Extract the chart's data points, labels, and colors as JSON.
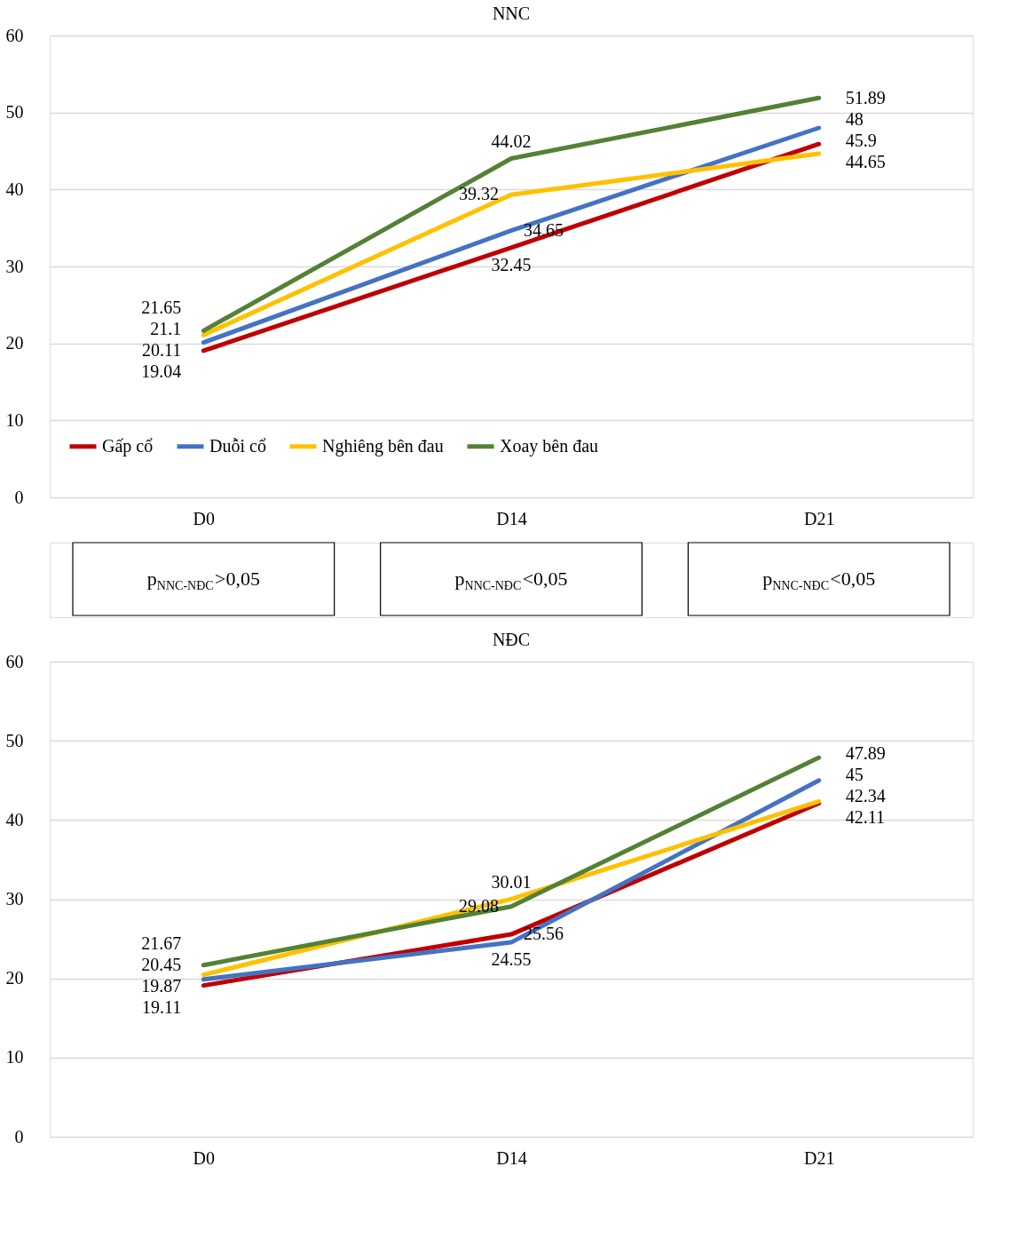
{
  "chart_data": [
    {
      "type": "line",
      "title": "NNC",
      "categories": [
        "D0",
        "D14",
        "D21"
      ],
      "ylim": [
        0,
        60
      ],
      "yticks": [
        0,
        10,
        20,
        30,
        40,
        50,
        60
      ],
      "grid": "y",
      "legend": "bottom",
      "data_labels": true,
      "line_style": "solid",
      "marker": "none",
      "series": [
        {
          "name": "Gấp cổ",
          "color": "#c00000",
          "values": [
            19.04,
            32.45,
            45.9
          ]
        },
        {
          "name": "Duỗi cổ",
          "color": "#4472c4",
          "values": [
            20.11,
            34.65,
            48
          ]
        },
        {
          "name": "Nghiêng bên đau",
          "color": "#ffc000",
          "values": [
            21.1,
            39.32,
            44.65
          ]
        },
        {
          "name": "Xoay bên đau",
          "color": "#538135",
          "values": [
            21.65,
            44.02,
            51.89
          ]
        }
      ]
    },
    {
      "type": "line",
      "title": "NĐC",
      "categories": [
        "D0",
        "D14",
        "D21"
      ],
      "ylim": [
        0,
        60
      ],
      "yticks": [
        0,
        10,
        20,
        30,
        40,
        50,
        60
      ],
      "grid": "y",
      "legend": "bottom",
      "data_labels": true,
      "line_style": "solid",
      "marker": "none",
      "annotations": [
        "p$_{NNC-NĐC}$>0,05",
        "p$_{NNC-NĐC}$<0,05",
        "p$_{NNC-NĐC}$<0,05"
      ],
      "series": [
        {
          "name": "Gấp cổ",
          "color": "#c00000",
          "values": [
            19.11,
            25.56,
            42.11
          ]
        },
        {
          "name": "Duỗi cổ",
          "color": "#4472c4",
          "values": [
            19.87,
            24.55,
            45
          ]
        },
        {
          "name": "Nghiêng bên đau",
          "color": "#ffc000",
          "values": [
            20.45,
            30.01,
            42.34
          ]
        },
        {
          "name": "Xoay bên đau",
          "color": "#538135",
          "values": [
            21.67,
            29.08,
            47.89
          ]
        }
      ]
    }
  ]
}
